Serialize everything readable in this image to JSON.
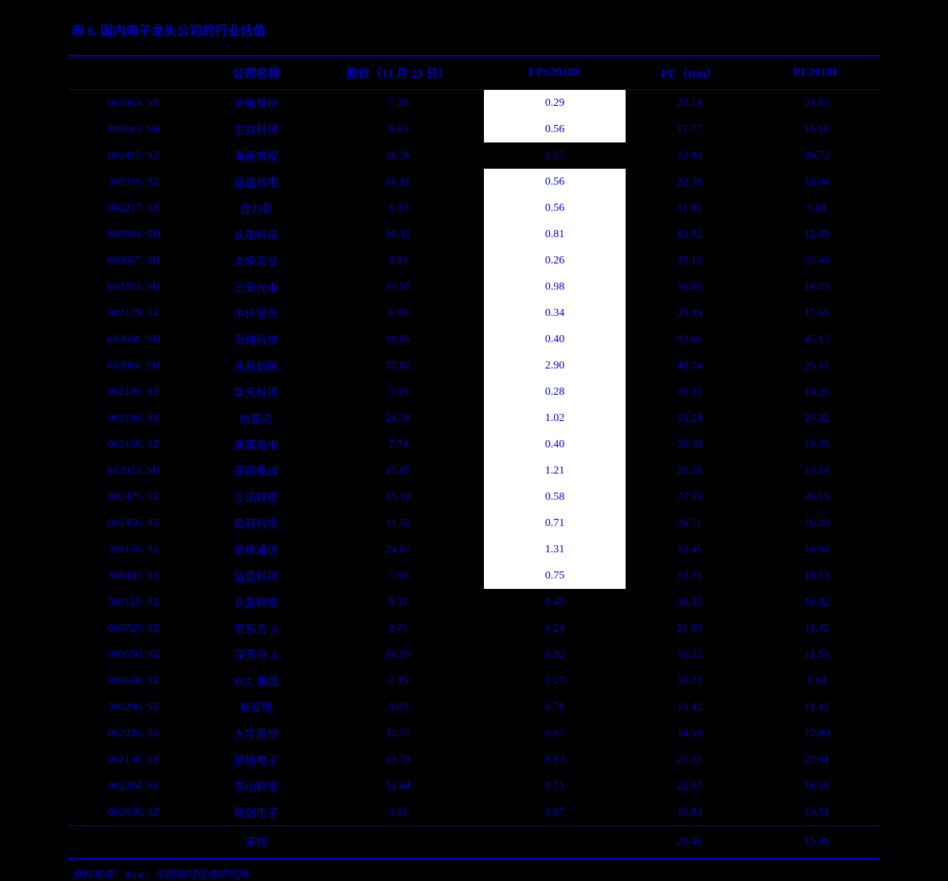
{
  "title": "表 6. 国内电子龙头公司的行业估值",
  "source": "资料来源：Wind，中国银河证券研究院",
  "colors": {
    "background": "#000000",
    "text": "#0000cc",
    "highlight_bg": "#ffffff",
    "border": "#0000cc"
  },
  "table": {
    "type": "table",
    "columns": [
      "",
      "公司名称",
      "股价（11 月 23 日）",
      "EPS2018E",
      "PE（ttm）",
      "PE2018E"
    ],
    "highlight_column_index": 3,
    "highlight_rows_start": 0,
    "highlight_rows_groups": [
      [
        0,
        1
      ],
      [
        3,
        18
      ]
    ],
    "rows": [
      [
        "002463. SZ",
        "沪电股份",
        "7.20",
        "0.29",
        "29.14",
        "24.83"
      ],
      [
        "600183. SH",
        "生益科技",
        "9.05",
        "0.56",
        "17.77",
        "16.16"
      ],
      [
        "002415. SZ",
        "海康威视",
        "26.36",
        "1.27",
        "22.83",
        "20.72"
      ],
      [
        "300316. SZ",
        "晶盛机电",
        "10.10",
        "0.56",
        "22.38",
        "18.04"
      ],
      [
        "002217. SZ",
        "合力泰",
        "5.53",
        "0.56",
        "11.81",
        "9.88"
      ],
      [
        "600584. SH",
        "长电科技",
        "10.12",
        "0.81",
        "82.92",
        "12.49"
      ],
      [
        "600667. SH",
        "太极实业",
        "5.84",
        "0.26",
        "25.16",
        "22.46"
      ],
      [
        "600703. SH",
        "三安光电",
        "13.95",
        "0.98",
        "16.83",
        "14.23"
      ],
      [
        "002129. SZ",
        "中环股份",
        "6.00",
        "0.34",
        "29.99",
        "17.65"
      ],
      [
        "603690. SH",
        "至纯科技",
        "18.05",
        "0.40",
        "93.66",
        "45.13"
      ],
      [
        "603986. SH",
        "兆易创新",
        "72.82",
        "2.90",
        "48.74",
        "25.11"
      ],
      [
        "002185. SZ",
        "华天科技",
        "3.99",
        "0.28",
        "19.55",
        "14.25"
      ],
      [
        "002180. SZ",
        "纳思达",
        "24.30",
        "1.02",
        "13.24",
        "23.82"
      ],
      [
        "002156. SZ",
        "通富微电",
        "7.74",
        "0.40",
        "56.38",
        "19.35"
      ],
      [
        "603929. SH",
        "亚翔集成",
        "15.85",
        "1.21",
        "20.26",
        "13.10"
      ],
      [
        "002475. SZ",
        "立讯精密",
        "15.19",
        "0.58",
        "27.59",
        "26.19"
      ],
      [
        "002456. SZ",
        "欧菲科技",
        "11.50",
        "0.71",
        "26.51",
        "16.20"
      ],
      [
        "300136. SZ",
        "信维通信",
        "24.87",
        "1.31",
        "23.41",
        "18.94"
      ],
      [
        "300433. SZ",
        "蓝思科技",
        "7.60",
        "0.75",
        "13.51",
        "10.13"
      ],
      [
        "300115. SZ",
        "长盈精密",
        "8.31",
        "0.49",
        "36.35",
        "16.82"
      ],
      [
        "000725. SZ",
        "京东方 A",
        "2.71",
        "0.24",
        "21.09",
        "11.42"
      ],
      [
        "000050. SZ",
        "深天马 A",
        "10.59",
        "0.92",
        "16.32",
        "11.53"
      ],
      [
        "000100. SZ",
        "TCL 集团",
        "2.45",
        "0.27",
        "10.22",
        "8.94"
      ],
      [
        "300296. SZ",
        "利亚德",
        "8.03",
        "0.70",
        "13.42",
        "11.43"
      ],
      [
        "002236. SZ",
        "大华股份",
        "12.57",
        "0.97",
        "14.59",
        "12.90"
      ],
      [
        "002138. SZ",
        "顺络电子",
        "13.79",
        "0.63",
        "25.11",
        "22.01"
      ],
      [
        "002384. SZ",
        "东山精密",
        "11.44",
        "0.71",
        "22.07",
        "16.18"
      ],
      [
        "002036. SZ",
        "联创电子",
        "9.11",
        "0.67",
        "15.83",
        "13.51"
      ]
    ],
    "avg_row": [
      "",
      "平均",
      "",
      "",
      "20.46",
      "15.09"
    ]
  }
}
